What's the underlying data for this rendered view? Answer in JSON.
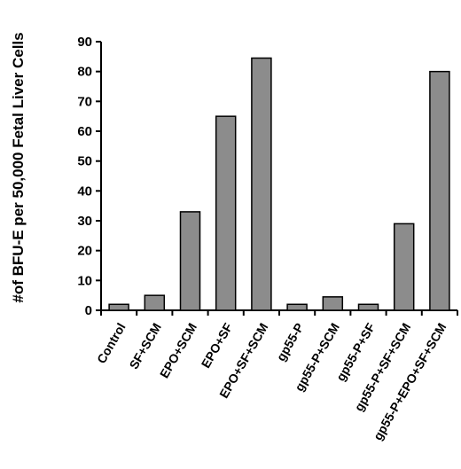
{
  "chart_data": {
    "type": "bar",
    "title": "",
    "xlabel": "",
    "ylabel": "#of BFU-E per 50,000 Fetal Liver Cells",
    "ylim": [
      0,
      90
    ],
    "yticks": [
      0,
      10,
      20,
      30,
      40,
      50,
      60,
      70,
      80,
      90
    ],
    "categories": [
      "Control",
      "SF+SCM",
      "EPO+SCM",
      "EPO+SF",
      "EPO+SF+SCM",
      "gp55-P",
      "gp55-P+SCM",
      "gp55-P+SF",
      "gp55-P+SF+SCM",
      "gp55-P+EPO+SF+SCM"
    ],
    "values": [
      2,
      5,
      33,
      65,
      84.5,
      2,
      4.5,
      2,
      29,
      80
    ],
    "grid": false,
    "bar_color": "#8c8c8c"
  }
}
